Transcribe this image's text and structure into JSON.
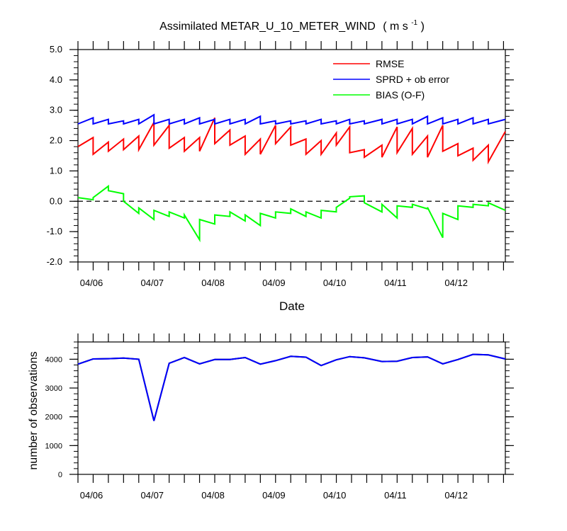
{
  "chart_data": [
    {
      "type": "line",
      "title": "Assimilated METAR_U_10_METER_WIND",
      "title_units": "( m s",
      "title_units_sup": "-1",
      "title_units_end": " )",
      "xlabel": "Date",
      "ylabel": "",
      "ylim": [
        -2.0,
        5.0
      ],
      "yticks": [
        "-2.0",
        "-1.0",
        "0.0",
        "1.0",
        "2.0",
        "3.0",
        "4.0",
        "5.0"
      ],
      "xlim": [
        5.79,
        12.82
      ],
      "xtick_labels": [
        "04/06",
        "04/07",
        "04/08",
        "04/09",
        "04/10",
        "04/11",
        "04/12"
      ],
      "legend_position": "top-right",
      "zero_line": true,
      "series": [
        {
          "name": "RMSE",
          "color": "#ff0000",
          "x": [
            5.79,
            6.04,
            6.04,
            6.29,
            6.29,
            6.54,
            6.54,
            6.79,
            6.79,
            7.04,
            7.04,
            7.29,
            7.29,
            7.54,
            7.54,
            7.79,
            7.79,
            8.04,
            8.04,
            8.29,
            8.29,
            8.54,
            8.54,
            8.79,
            8.79,
            9.04,
            9.04,
            9.29,
            9.29,
            9.54,
            9.54,
            9.79,
            9.79,
            10.04,
            10.04,
            10.26,
            10.26,
            10.5,
            10.5,
            10.79,
            10.79,
            11.04,
            11.04,
            11.29,
            11.29,
            11.54,
            11.54,
            11.79,
            11.79,
            12.04,
            12.04,
            12.29,
            12.29,
            12.54,
            12.54,
            12.82
          ],
          "y": [
            1.8,
            2.1,
            1.55,
            1.95,
            1.65,
            2.05,
            1.7,
            2.15,
            1.7,
            2.6,
            1.85,
            2.5,
            1.75,
            2.1,
            1.65,
            2.1,
            1.65,
            2.75,
            1.9,
            2.35,
            1.85,
            2.15,
            1.55,
            2.05,
            1.55,
            2.5,
            1.9,
            2.45,
            1.85,
            2.05,
            1.55,
            2.0,
            1.55,
            2.25,
            1.85,
            2.45,
            1.6,
            1.7,
            1.45,
            1.85,
            1.45,
            2.45,
            1.6,
            2.4,
            1.55,
            2.15,
            1.45,
            2.5,
            1.65,
            1.9,
            1.5,
            1.75,
            1.35,
            1.85,
            1.3,
            2.3
          ]
        },
        {
          "name": "SPRD + ob error",
          "color": "#0000ff",
          "x": [
            5.79,
            6.04,
            6.04,
            6.29,
            6.29,
            6.54,
            6.54,
            6.79,
            6.79,
            7.04,
            7.04,
            7.29,
            7.29,
            7.54,
            7.54,
            7.79,
            7.79,
            8.04,
            8.04,
            8.29,
            8.29,
            8.54,
            8.54,
            8.79,
            8.79,
            9.04,
            9.04,
            9.29,
            9.29,
            9.54,
            9.54,
            9.79,
            9.79,
            10.04,
            10.04,
            10.26,
            10.26,
            10.5,
            10.5,
            10.79,
            10.79,
            11.04,
            11.04,
            11.29,
            11.29,
            11.54,
            11.54,
            11.79,
            11.79,
            12.04,
            12.04,
            12.29,
            12.29,
            12.54,
            12.54,
            12.82
          ],
          "y": [
            2.55,
            2.75,
            2.55,
            2.7,
            2.55,
            2.65,
            2.55,
            2.7,
            2.55,
            2.85,
            2.55,
            2.7,
            2.55,
            2.7,
            2.55,
            2.75,
            2.55,
            2.7,
            2.55,
            2.7,
            2.55,
            2.7,
            2.55,
            2.8,
            2.55,
            2.65,
            2.55,
            2.65,
            2.55,
            2.65,
            2.55,
            2.7,
            2.55,
            2.65,
            2.55,
            2.7,
            2.55,
            2.65,
            2.55,
            2.7,
            2.55,
            2.7,
            2.55,
            2.7,
            2.55,
            2.8,
            2.55,
            2.75,
            2.55,
            2.7,
            2.55,
            2.75,
            2.55,
            2.7,
            2.55,
            2.7
          ]
        },
        {
          "name": "BIAS (O-F)",
          "color": "#00ff00",
          "x": [
            5.79,
            6.04,
            6.04,
            6.29,
            6.29,
            6.54,
            6.54,
            6.79,
            6.79,
            7.04,
            7.04,
            7.29,
            7.29,
            7.54,
            7.54,
            7.79,
            7.79,
            8.04,
            8.04,
            8.29,
            8.29,
            8.54,
            8.54,
            8.79,
            8.79,
            9.04,
            9.04,
            9.29,
            9.29,
            9.54,
            9.54,
            9.79,
            9.79,
            10.04,
            10.04,
            10.26,
            10.26,
            10.5,
            10.5,
            10.79,
            10.79,
            11.04,
            11.04,
            11.29,
            11.29,
            11.54,
            11.54,
            11.79,
            11.79,
            12.04,
            12.04,
            12.29,
            12.29,
            12.54,
            12.54,
            12.82
          ],
          "y": [
            0.12,
            0.05,
            0.12,
            0.5,
            0.35,
            0.25,
            0.0,
            -0.4,
            -0.22,
            -0.6,
            -0.3,
            -0.5,
            -0.35,
            -0.55,
            -0.45,
            -1.27,
            -0.6,
            -0.75,
            -0.45,
            -0.5,
            -0.35,
            -0.65,
            -0.45,
            -0.8,
            -0.4,
            -0.55,
            -0.35,
            -0.4,
            -0.25,
            -0.5,
            -0.35,
            -0.55,
            -0.3,
            -0.35,
            -0.2,
            0.1,
            0.15,
            0.18,
            -0.05,
            -0.35,
            -0.1,
            -0.55,
            -0.15,
            -0.2,
            -0.1,
            -0.25,
            -0.2,
            -1.2,
            -0.4,
            -0.6,
            -0.15,
            -0.2,
            -0.1,
            -0.15,
            -0.05,
            -0.3
          ]
        }
      ]
    },
    {
      "type": "line",
      "title": "",
      "xlabel": "",
      "ylabel": "number of observations",
      "ylim": [
        0,
        4600
      ],
      "yticks": [
        "0",
        "1000",
        "2000",
        "3000",
        "4000"
      ],
      "xlim": [
        5.79,
        12.82
      ],
      "xtick_labels": [
        "04/06",
        "04/07",
        "04/08",
        "04/09",
        "04/10",
        "04/11",
        "04/12"
      ],
      "series": [
        {
          "name": "",
          "color": "#000000",
          "x": [
            5.79,
            6.04,
            6.29,
            6.54,
            6.79,
            7.04,
            7.29,
            7.54,
            7.79,
            8.04,
            8.29,
            8.54,
            8.79,
            9.04,
            9.29,
            9.54,
            9.79,
            10.04,
            10.26,
            10.5,
            10.79,
            11.04,
            11.29,
            11.54,
            11.79,
            12.04,
            12.29,
            12.54,
            12.82
          ],
          "y": [
            3830,
            4010,
            4020,
            4040,
            4000,
            1860,
            3860,
            4060,
            3840,
            3990,
            3990,
            4060,
            3830,
            3950,
            4100,
            4070,
            3780,
            3980,
            4090,
            4050,
            3920,
            3930,
            4060,
            4080,
            3840,
            3990,
            4170,
            4150,
            4010
          ]
        },
        {
          "name": "",
          "color": "#0000ff",
          "x": [
            5.79,
            6.04,
            6.29,
            6.54,
            6.79,
            7.04,
            7.29,
            7.54,
            7.79,
            8.04,
            8.29,
            8.54,
            8.79,
            9.04,
            9.29,
            9.54,
            9.79,
            10.04,
            10.26,
            10.5,
            10.79,
            11.04,
            11.29,
            11.54,
            11.79,
            12.04,
            12.29,
            12.54,
            12.82
          ],
          "y": [
            3830,
            4010,
            4020,
            4040,
            4000,
            1860,
            3860,
            4060,
            3840,
            3990,
            3990,
            4060,
            3830,
            3950,
            4100,
            4070,
            3780,
            3980,
            4090,
            4050,
            3920,
            3930,
            4060,
            4080,
            3840,
            3990,
            4170,
            4150,
            4010
          ]
        }
      ]
    }
  ]
}
